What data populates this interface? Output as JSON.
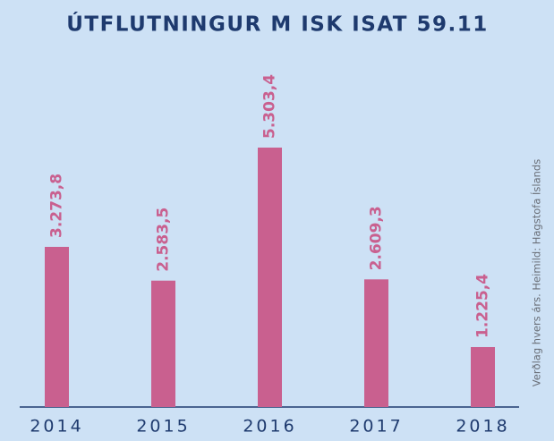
{
  "chart_data": {
    "type": "bar",
    "title": "ÚTFLUTNINGUR M ISK ISAT 59.11",
    "categories": [
      "2014",
      "2015",
      "2016",
      "2017",
      "2018"
    ],
    "values": [
      3273.8,
      2583.5,
      5303.4,
      2609.3,
      1225.4
    ],
    "value_labels": [
      "3.273,8",
      "2.583,5",
      "5.303,4",
      "2.609,3",
      "1.225,4"
    ],
    "color": "#c9608f",
    "source": "Verðlag hvers árs. Heimild: Hagstofa Íslands"
  }
}
